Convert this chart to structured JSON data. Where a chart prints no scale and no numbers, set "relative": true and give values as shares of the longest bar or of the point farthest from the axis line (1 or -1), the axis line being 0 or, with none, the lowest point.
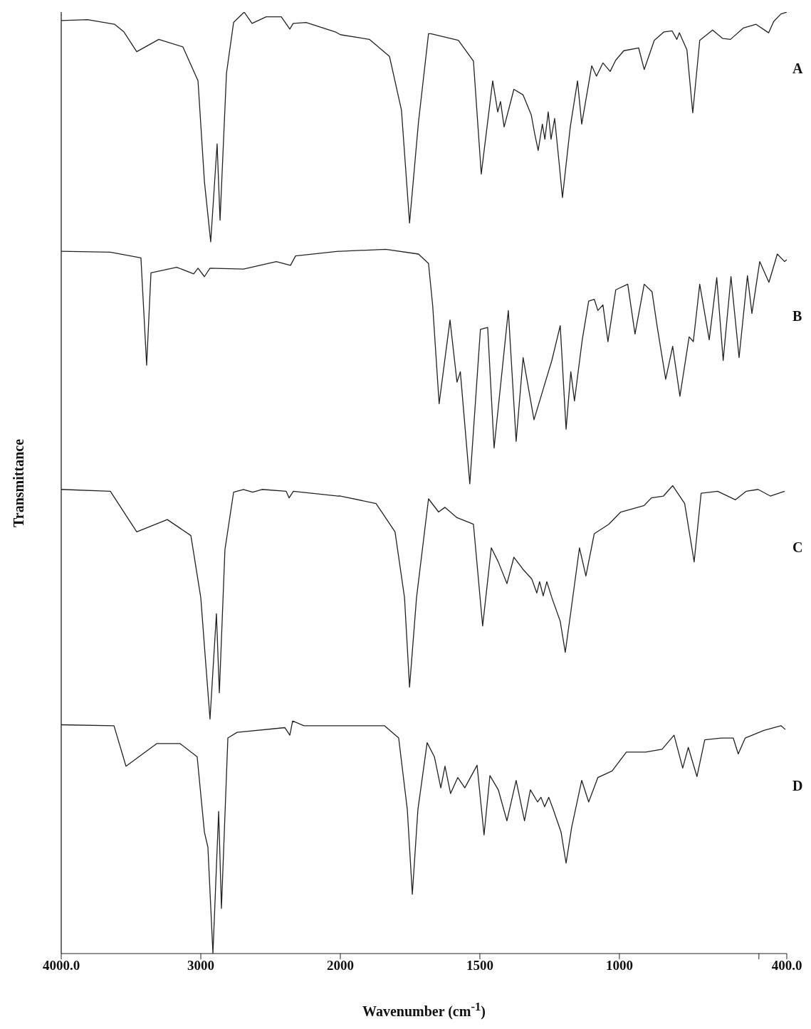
{
  "chart_data": [
    {
      "type": "line",
      "relative": true,
      "xlabel": "Wavenumber (cm$^{-1}$)",
      "ylabel": "Transmittance",
      "xlim": [
        4000,
        2000
      ],
      "xticks": [
        {
          "value": 4000,
          "label": "4000.0"
        },
        3000,
        2000
      ],
      "series": [
        {
          "color": "#222222",
          "x": [
            4000,
            3811,
            3617,
            3551,
            3459,
            3301,
            3128,
            3020,
            2974,
            2929,
            2883,
            2862,
            2816,
            2765,
            2689,
            2633,
            2531,
            2423,
            2362,
            2338,
            2245,
            2036,
            2000
          ],
          "values": [
            0.991,
            0.992,
            0.987,
            0.979,
            0.958,
            0.971,
            0.963,
            0.927,
            0.82,
            0.756,
            0.86,
            0.779,
            0.935,
            0.989,
            1.0,
            0.988,
            0.995,
            0.995,
            0.982,
            0.988,
            0.989,
            0.979,
            0.976
          ]
        },
        {
          "color": "#222222",
          "x": [
            4000,
            3648,
            3429,
            3388,
            3357,
            3173,
            3051,
            3020,
            2974,
            2934,
            2694,
            2459,
            2357,
            2321,
            2015,
            2000
          ],
          "values": [
            0.746,
            0.745,
            0.739,
            0.625,
            0.723,
            0.729,
            0.722,
            0.728,
            0.719,
            0.728,
            0.727,
            0.735,
            0.731,
            0.741,
            0.746,
            0.746
          ]
        },
        {
          "color": "#222222",
          "x": [
            4000,
            3648,
            3459,
            3240,
            3071,
            3000,
            2969,
            2934,
            2888,
            2867,
            2827,
            2765,
            2694,
            2628,
            2561,
            2388,
            2367,
            2337,
            2015,
            2000
          ],
          "values": [
            0.493,
            0.491,
            0.448,
            0.461,
            0.444,
            0.378,
            0.317,
            0.249,
            0.361,
            0.277,
            0.429,
            0.49,
            0.493,
            0.49,
            0.493,
            0.491,
            0.484,
            0.491,
            0.486,
            0.486
          ]
        },
        {
          "color": "#222222",
          "x": [
            4000,
            3622,
            3536,
            3316,
            3148,
            3026,
            2974,
            2949,
            2913,
            2872,
            2852,
            2806,
            2740,
            2398,
            2362,
            2342,
            2260,
            2000
          ],
          "values": [
            0.243,
            0.242,
            0.199,
            0.223,
            0.223,
            0.209,
            0.129,
            0.113,
            0.0,
            0.151,
            0.048,
            0.229,
            0.235,
            0.24,
            0.232,
            0.247,
            0.242,
            0.242
          ]
        }
      ]
    },
    {
      "type": "line",
      "relative": true,
      "tick_labels": "x",
      "xlim": [
        2000,
        400
      ],
      "xticks": [
        1500,
        1000,
        {
          "value": 500,
          "label": null
        },
        {
          "value": 400,
          "label": "400.0"
        }
      ],
      "series": [
        {
          "name": "A",
          "color": "#222222",
          "x": [
            2000,
            1896,
            1824,
            1781,
            1752,
            1720,
            1684,
            1676,
            1577,
            1523,
            1495,
            1454,
            1436,
            1426,
            1413,
            1378,
            1345,
            1316,
            1303,
            1291,
            1276,
            1267,
            1255,
            1245,
            1232,
            1217,
            1204,
            1176,
            1150,
            1135,
            1099,
            1082,
            1059,
            1033,
            1013,
            984,
            931,
            911,
            875,
            840,
            811,
            794,
            785,
            758,
            737,
            712,
            666,
            630,
            602,
            556,
            510,
            465,
            447,
            421,
            400
          ],
          "values": [
            0.976,
            0.971,
            0.953,
            0.896,
            0.776,
            0.883,
            0.977,
            0.977,
            0.97,
            0.948,
            0.828,
            0.927,
            0.894,
            0.905,
            0.878,
            0.918,
            0.912,
            0.891,
            0.87,
            0.853,
            0.881,
            0.865,
            0.894,
            0.865,
            0.887,
            0.843,
            0.803,
            0.878,
            0.927,
            0.881,
            0.943,
            0.932,
            0.946,
            0.937,
            0.949,
            0.959,
            0.962,
            0.939,
            0.97,
            0.979,
            0.98,
            0.971,
            0.978,
            0.96,
            0.893,
            0.97,
            0.981,
            0.972,
            0.971,
            0.983,
            0.987,
            0.978,
            0.99,
            0.998,
            1.0
          ]
        },
        {
          "name": "B",
          "color": "#222222",
          "x": [
            2000,
            1837,
            1720,
            1684,
            1669,
            1646,
            1607,
            1582,
            1570,
            1536,
            1498,
            1472,
            1449,
            1398,
            1370,
            1345,
            1306,
            1242,
            1212,
            1191,
            1174,
            1161,
            1133,
            1110,
            1090,
            1077,
            1059,
            1041,
            1013,
            970,
            944,
            911,
            883,
            865,
            834,
            809,
            783,
            750,
            735,
            712,
            678,
            651,
            628,
            600,
            571,
            541,
            525,
            497,
            464,
            434,
            408,
            400
          ],
          "values": [
            0.746,
            0.748,
            0.743,
            0.733,
            0.688,
            0.584,
            0.673,
            0.607,
            0.618,
            0.499,
            0.663,
            0.665,
            0.537,
            0.683,
            0.544,
            0.633,
            0.567,
            0.63,
            0.667,
            0.557,
            0.618,
            0.587,
            0.652,
            0.693,
            0.695,
            0.683,
            0.689,
            0.65,
            0.705,
            0.711,
            0.658,
            0.711,
            0.703,
            0.667,
            0.61,
            0.645,
            0.592,
            0.655,
            0.65,
            0.711,
            0.652,
            0.718,
            0.63,
            0.719,
            0.633,
            0.72,
            0.68,
            0.735,
            0.713,
            0.743,
            0.735,
            0.737
          ]
        },
        {
          "name": "C",
          "color": "#222222",
          "x": [
            2000,
            1872,
            1804,
            1770,
            1752,
            1727,
            1684,
            1648,
            1625,
            1582,
            1523,
            1490,
            1459,
            1434,
            1403,
            1378,
            1345,
            1314,
            1296,
            1286,
            1273,
            1260,
            1242,
            1212,
            1194,
            1174,
            1143,
            1120,
            1090,
            1038,
            995,
            911,
            885,
            842,
            809,
            766,
            732,
            707,
            648,
            584,
            546,
            503,
            459,
            408
          ],
          "values": [
            0.486,
            0.478,
            0.448,
            0.378,
            0.283,
            0.378,
            0.483,
            0.469,
            0.474,
            0.463,
            0.456,
            0.348,
            0.431,
            0.416,
            0.393,
            0.421,
            0.408,
            0.398,
            0.383,
            0.395,
            0.38,
            0.395,
            0.378,
            0.353,
            0.32,
            0.363,
            0.431,
            0.401,
            0.446,
            0.456,
            0.469,
            0.476,
            0.484,
            0.486,
            0.497,
            0.478,
            0.416,
            0.489,
            0.491,
            0.482,
            0.491,
            0.493,
            0.486,
            0.491
          ]
        },
        {
          "name": "D",
          "color": "#222222",
          "x": [
            2000,
            1842,
            1791,
            1760,
            1742,
            1722,
            1689,
            1663,
            1640,
            1625,
            1605,
            1579,
            1554,
            1510,
            1485,
            1464,
            1434,
            1403,
            1370,
            1340,
            1319,
            1293,
            1281,
            1268,
            1253,
            1237,
            1209,
            1191,
            1171,
            1135,
            1110,
            1077,
            1026,
            975,
            906,
            847,
            804,
            773,
            753,
            722,
            694,
            635,
            592,
            574,
            549,
            482,
            421,
            405
          ],
          "values": [
            0.242,
            0.242,
            0.229,
            0.153,
            0.063,
            0.153,
            0.224,
            0.209,
            0.176,
            0.199,
            0.17,
            0.187,
            0.176,
            0.2,
            0.126,
            0.189,
            0.174,
            0.141,
            0.184,
            0.141,
            0.174,
            0.161,
            0.166,
            0.156,
            0.166,
            0.153,
            0.129,
            0.096,
            0.134,
            0.184,
            0.161,
            0.187,
            0.194,
            0.214,
            0.214,
            0.217,
            0.232,
            0.197,
            0.219,
            0.188,
            0.227,
            0.229,
            0.229,
            0.212,
            0.229,
            0.237,
            0.242,
            0.238
          ]
        }
      ]
    }
  ]
}
